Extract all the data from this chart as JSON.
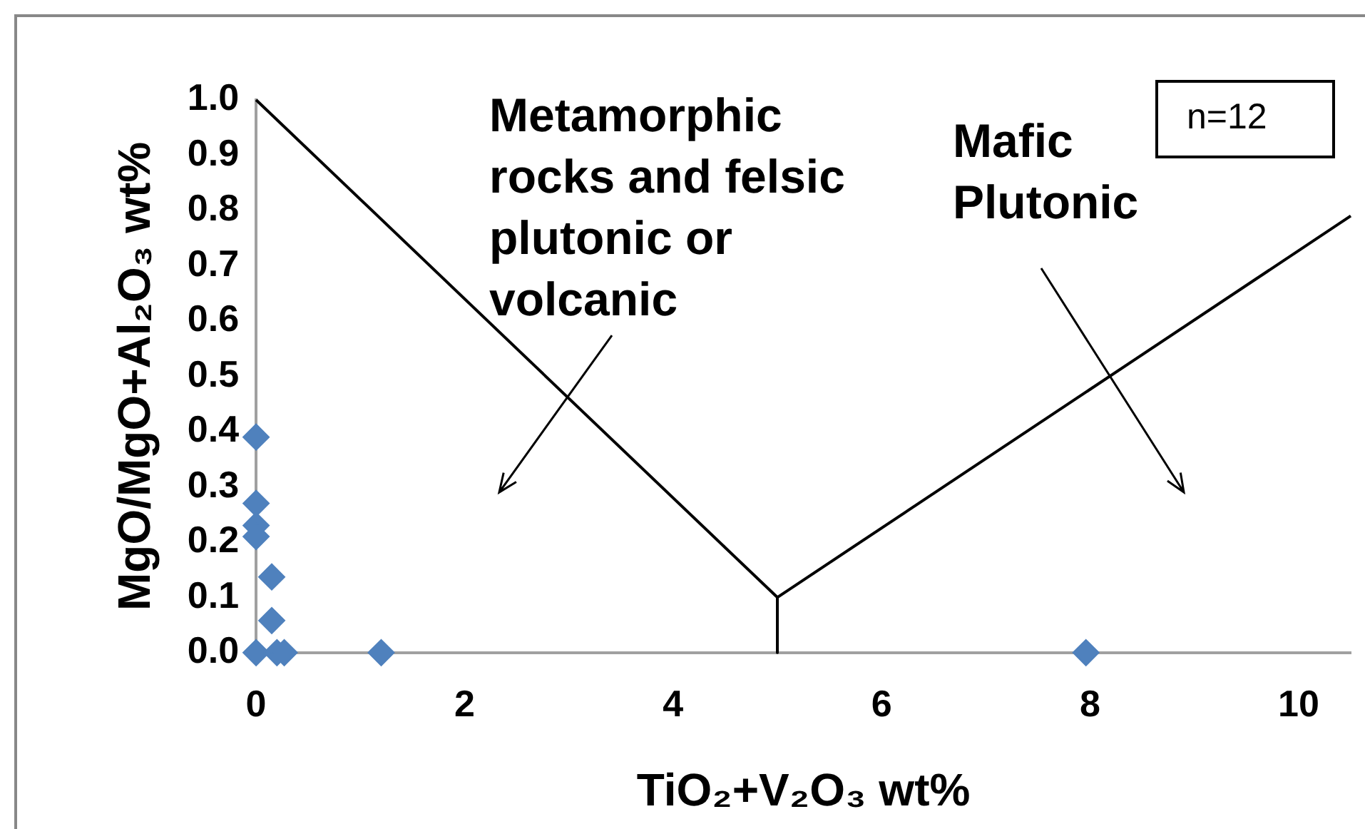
{
  "chart_data": {
    "type": "scatter",
    "xlabel": "TiO₂+V₂O₃ wt%",
    "ylabel": "MgO/MgO+Al₂O₃ wt%",
    "xlim": [
      0,
      10.5
    ],
    "xticks": [
      0,
      2,
      4,
      6,
      8,
      10
    ],
    "ylim": [
      0,
      1
    ],
    "yticks": [
      {
        "value": 0,
        "label": "0.0"
      },
      {
        "value": 0.1,
        "label": "0.1"
      },
      {
        "value": 0.2,
        "label": "0.2"
      },
      {
        "value": 0.3,
        "label": "0.3"
      },
      {
        "value": 0.4,
        "label": "0.4"
      },
      {
        "value": 0.5,
        "label": "0.5"
      },
      {
        "value": 0.6,
        "label": "0.6"
      },
      {
        "value": 0.7,
        "label": "0.7"
      },
      {
        "value": 0.8,
        "label": "0.8"
      },
      {
        "value": 0.9,
        "label": "0.9"
      },
      {
        "value": 1,
        "label": "1.0"
      }
    ],
    "grid": false,
    "legend": false,
    "marker": "diamond",
    "series": [
      {
        "type": "scatter",
        "color": "#4f81bd",
        "x": [
          0,
          0,
          0,
          0,
          0.15,
          0.15,
          0,
          0.2,
          0.27,
          1.2,
          7.96
        ],
        "values": [
          0.39,
          0.27,
          0.23,
          0.21,
          0.137,
          0.058,
          0,
          0,
          0,
          0,
          0
        ]
      },
      {
        "type": "line",
        "color": "#000000",
        "marker": "none",
        "line_style": "solid",
        "x": [
          0,
          5,
          5
        ],
        "values": [
          1,
          0.1,
          0
        ]
      },
      {
        "type": "line",
        "color": "#000000",
        "marker": "none",
        "line_style": "solid",
        "x": [
          5,
          10.5
        ],
        "values": [
          0.1,
          0.79
        ]
      }
    ],
    "annotations": [
      "Metamorphic rocks and felsic plutonic or volcanic",
      "Mafic Plutonic",
      "n=12"
    ]
  }
}
